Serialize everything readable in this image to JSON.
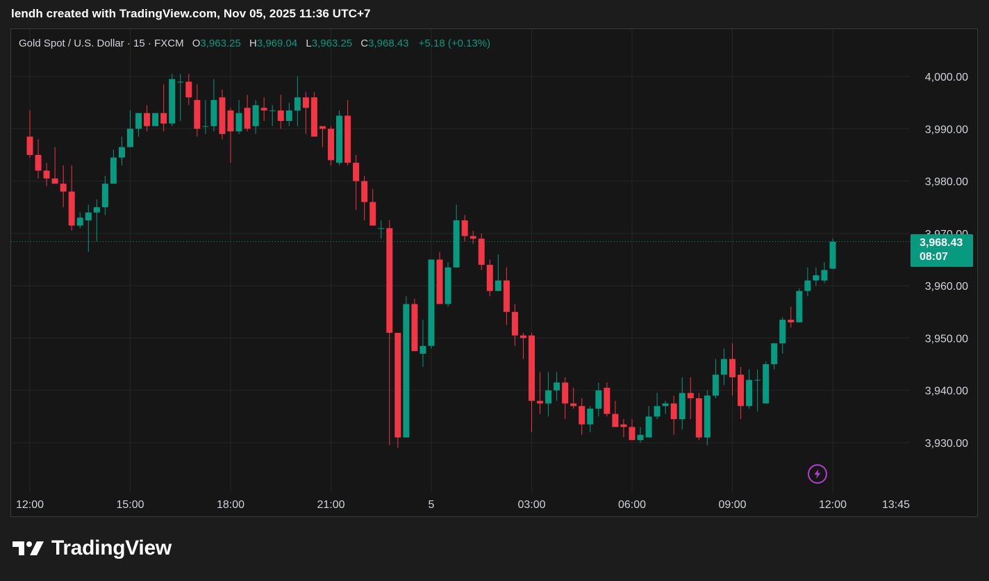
{
  "caption": "lendh created with TradingView.com, Nov 05, 2025 11:36 UTC+7",
  "legend": {
    "symbol": "Gold Spot / U.S. Dollar · 15 · FXCM",
    "o_label": "O",
    "o_value": "3,963.25",
    "h_label": "H",
    "h_value": "3,969.04",
    "l_label": "L",
    "l_value": "3,963.25",
    "c_label": "C",
    "c_value": "3,968.43",
    "change": "+5.18 (+0.13%)"
  },
  "price_tag": {
    "price": "3,968.43",
    "countdown": "08:07"
  },
  "logo": {
    "text": "TradingView"
  },
  "colors": {
    "up": "#089981",
    "down": "#f23645",
    "grid": "#262626",
    "axis_text": "#d1d4dc"
  },
  "icons": [
    "bolt-icon",
    "tradingview-logo-icon"
  ],
  "chart_data": {
    "type": "candlestick",
    "title": "Gold Spot / U.S. Dollar · 15 · FXCM",
    "ylim": [
      3922.5,
      4007.5
    ],
    "y_ticks": [
      4000,
      3990,
      3980,
      3970,
      3960,
      3950,
      3940,
      3930
    ],
    "y_tick_labels": [
      "4,000.00",
      "3,990.00",
      "3,980.00",
      "3,970.00",
      "3,960.00",
      "3,950.00",
      "3,940.00",
      "3,930.00"
    ],
    "x_ticks": [
      "12:00",
      "15:00",
      "18:00",
      "21:00",
      "5",
      "03:00",
      "06:00",
      "09:00",
      "12:00",
      "13:45"
    ],
    "x_tick_times": [
      0,
      180,
      360,
      540,
      720,
      900,
      1080,
      1260,
      1440,
      1545
    ],
    "time_origin": "12:00",
    "interval_minutes": 15,
    "last_price": 3968.43,
    "grid": true,
    "candles": [
      [
        3988.5,
        3993.5,
        3984.5,
        3985.0
      ],
      [
        3985.0,
        3988.0,
        3980.5,
        3982.0
      ],
      [
        3982.0,
        3983.5,
        3979.0,
        3980.5
      ],
      [
        3980.5,
        3986.5,
        3979.5,
        3979.5
      ],
      [
        3979.5,
        3983.0,
        3975.0,
        3978.0
      ],
      [
        3978.0,
        3983.0,
        3970.5,
        3971.5
      ],
      [
        3971.5,
        3974.0,
        3971.0,
        3973.0
      ],
      [
        3972.5,
        3975.5,
        3966.5,
        3974.0
      ],
      [
        3974.0,
        3976.5,
        3968.5,
        3975.0
      ],
      [
        3975.0,
        3981.0,
        3973.5,
        3979.5
      ],
      [
        3979.5,
        3986.0,
        3979.5,
        3984.5
      ],
      [
        3984.5,
        3988.5,
        3983.0,
        3986.5
      ],
      [
        3986.5,
        3993.5,
        3986.5,
        3990.0
      ],
      [
        3990.0,
        3993.0,
        3988.5,
        3993.0
      ],
      [
        3993.0,
        3994.5,
        3989.5,
        3990.5
      ],
      [
        3990.5,
        3993.0,
        3990.5,
        3993.0
      ],
      [
        3993.0,
        3998.5,
        3989.5,
        3991.0
      ],
      [
        3991.0,
        4000.5,
        3990.5,
        3999.5
      ],
      [
        3999.0,
        4000.5,
        3991.5,
        3999.0
      ],
      [
        3999.0,
        4000.5,
        3994.5,
        3996.0
      ],
      [
        3995.5,
        3998.5,
        3988.5,
        3990.0
      ],
      [
        3990.5,
        3995.5,
        3989.0,
        3990.5
      ],
      [
        3990.5,
        3999.5,
        3989.5,
        3995.5
      ],
      [
        3996.0,
        3997.5,
        3988.0,
        3989.0
      ],
      [
        3993.5,
        3994.0,
        3983.5,
        3989.5
      ],
      [
        3989.5,
        3995.5,
        3989.0,
        3993.0
      ],
      [
        3994.0,
        3996.5,
        3989.5,
        3990.0
      ],
      [
        3990.5,
        3995.5,
        3989.0,
        3994.5
      ],
      [
        3994.0,
        3996.0,
        3991.5,
        3993.5
      ],
      [
        3993.5,
        3994.5,
        3990.5,
        3993.5
      ],
      [
        3993.5,
        3996.5,
        3990.0,
        3991.5
      ],
      [
        3991.5,
        3995.0,
        3990.5,
        3993.5
      ],
      [
        3993.5,
        4000.0,
        3990.5,
        3996.0
      ],
      [
        3996.0,
        3997.0,
        3989.0,
        3994.0
      ],
      [
        3996.0,
        3997.0,
        3988.5,
        3988.5
      ],
      [
        3990.5,
        3990.5,
        3986.5,
        3990.0
      ],
      [
        3990.0,
        3990.5,
        3983.0,
        3984.0
      ],
      [
        3983.5,
        3993.5,
        3983.0,
        3992.5
      ],
      [
        3992.5,
        3995.5,
        3983.0,
        3983.5
      ],
      [
        3983.5,
        3985.0,
        3974.5,
        3980.0
      ],
      [
        3980.0,
        3981.0,
        3972.5,
        3976.0
      ],
      [
        3976.0,
        3978.5,
        3971.5,
        3971.5
      ],
      [
        3971.0,
        3972.5,
        3969.0,
        3971.0
      ],
      [
        3971.0,
        3972.5,
        3929.5,
        3951.0
      ],
      [
        3951.0,
        3950.5,
        3929.0,
        3931.0
      ],
      [
        3931.0,
        3958.0,
        3931.5,
        3956.5
      ],
      [
        3956.5,
        3957.5,
        3947.5,
        3947.5
      ],
      [
        3947.0,
        3953.5,
        3944.5,
        3948.5
      ],
      [
        3948.5,
        3964.5,
        3948.0,
        3965.0
      ],
      [
        3965.0,
        3966.5,
        3956.5,
        3956.5
      ],
      [
        3956.5,
        3964.5,
        3956.0,
        3963.5
      ],
      [
        3963.5,
        3975.5,
        3963.5,
        3972.5
      ],
      [
        3972.5,
        3973.5,
        3968.5,
        3969.5
      ],
      [
        3969.5,
        3970.5,
        3968.0,
        3969.0
      ],
      [
        3969.0,
        3970.0,
        3963.0,
        3964.0
      ],
      [
        3964.0,
        3965.0,
        3958.0,
        3959.0
      ],
      [
        3959.0,
        3966.0,
        3959.0,
        3961.0
      ],
      [
        3961.0,
        3963.5,
        3952.5,
        3955.0
      ],
      [
        3955.0,
        3956.5,
        3948.5,
        3950.5
      ],
      [
        3950.5,
        3951.0,
        3946.0,
        3950.0
      ],
      [
        3950.5,
        3951.0,
        3932.0,
        3938.0
      ],
      [
        3938.0,
        3943.5,
        3935.5,
        3937.5
      ],
      [
        3937.5,
        3943.5,
        3935.0,
        3940.0
      ],
      [
        3940.0,
        3943.5,
        3938.0,
        3941.5
      ],
      [
        3941.5,
        3942.5,
        3934.5,
        3937.5
      ],
      [
        3937.5,
        3940.5,
        3936.5,
        3937.0
      ],
      [
        3937.0,
        3938.5,
        3931.5,
        3933.5
      ],
      [
        3933.5,
        3937.0,
        3932.0,
        3936.5
      ],
      [
        3936.5,
        3941.5,
        3935.0,
        3940.0
      ],
      [
        3940.5,
        3941.5,
        3935.0,
        3935.5
      ],
      [
        3935.5,
        3938.0,
        3933.0,
        3933.0
      ],
      [
        3933.5,
        3934.5,
        3931.0,
        3933.0
      ],
      [
        3933.0,
        3934.5,
        3930.5,
        3930.5
      ],
      [
        3930.5,
        3933.0,
        3930.0,
        3931.5
      ],
      [
        3931.0,
        3937.0,
        3931.0,
        3935.0
      ],
      [
        3935.0,
        3939.5,
        3934.5,
        3937.0
      ],
      [
        3937.0,
        3938.0,
        3935.5,
        3937.5
      ],
      [
        3937.5,
        3939.0,
        3931.5,
        3934.5
      ],
      [
        3934.5,
        3942.5,
        3932.5,
        3939.5
      ],
      [
        3939.5,
        3942.5,
        3934.5,
        3938.5
      ],
      [
        3938.5,
        3939.5,
        3930.5,
        3931.0
      ],
      [
        3931.0,
        3940.0,
        3929.5,
        3939.0
      ],
      [
        3939.0,
        3946.0,
        3938.5,
        3943.0
      ],
      [
        3943.0,
        3948.0,
        3941.0,
        3946.0
      ],
      [
        3946.0,
        3949.0,
        3939.0,
        3942.5
      ],
      [
        3943.0,
        3944.5,
        3934.5,
        3937.0
      ],
      [
        3937.0,
        3944.0,
        3936.5,
        3942.0
      ],
      [
        3942.0,
        3944.0,
        3936.0,
        3942.0
      ],
      [
        3937.5,
        3945.5,
        3937.5,
        3945.0
      ],
      [
        3945.0,
        3948.5,
        3944.0,
        3949.0
      ],
      [
        3949.0,
        3954.0,
        3947.0,
        3953.5
      ],
      [
        3953.5,
        3956.0,
        3952.0,
        3953.0
      ],
      [
        3953.0,
        3959.5,
        3953.0,
        3959.0
      ],
      [
        3959.0,
        3963.5,
        3958.0,
        3961.0
      ],
      [
        3961.0,
        3963.5,
        3960.0,
        3962.0
      ],
      [
        3961.0,
        3964.5,
        3960.5,
        3963.0
      ],
      [
        3963.25,
        3969.04,
        3963.25,
        3968.43
      ]
    ]
  }
}
